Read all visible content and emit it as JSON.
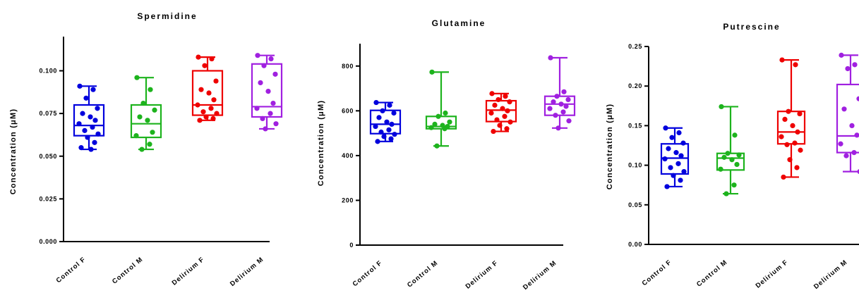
{
  "chart_data": [
    {
      "type": "box",
      "title": "Spermidine",
      "ylabel": "Concentration (μM)",
      "ylim": [
        0,
        0.12
      ],
      "yticks": [
        "0.000",
        "0.025",
        "0.050",
        "0.075",
        "0.100"
      ],
      "ytick_values": [
        0,
        0.025,
        0.05,
        0.075,
        0.1
      ],
      "categories": [
        "Control F",
        "Control M",
        "Delirium F",
        "Delirium M"
      ],
      "colors": [
        "#0000dd",
        "#1db31d",
        "#ee0000",
        "#a020e0"
      ],
      "series": [
        {
          "box": {
            "min": 0.054,
            "q1": 0.062,
            "median": 0.068,
            "q3": 0.08,
            "max": 0.091
          },
          "points": [
            0.091,
            0.089,
            0.084,
            0.078,
            0.075,
            0.073,
            0.071,
            0.069,
            0.067,
            0.065,
            0.063,
            0.061,
            0.058,
            0.055,
            0.054
          ]
        },
        {
          "box": {
            "min": 0.054,
            "q1": 0.061,
            "median": 0.069,
            "q3": 0.08,
            "max": 0.096
          },
          "points": [
            0.096,
            0.089,
            0.081,
            0.077,
            0.073,
            0.071,
            0.064,
            0.062,
            0.057,
            0.054
          ]
        },
        {
          "box": {
            "min": 0.071,
            "q1": 0.074,
            "median": 0.08,
            "q3": 0.1,
            "max": 0.108
          },
          "points": [
            0.108,
            0.107,
            0.103,
            0.094,
            0.089,
            0.087,
            0.083,
            0.08,
            0.078,
            0.076,
            0.075,
            0.073,
            0.072,
            0.071
          ]
        },
        {
          "box": {
            "min": 0.066,
            "q1": 0.073,
            "median": 0.079,
            "q3": 0.104,
            "max": 0.109
          },
          "points": [
            0.109,
            0.107,
            0.103,
            0.098,
            0.093,
            0.088,
            0.081,
            0.078,
            0.075,
            0.072,
            0.069,
            0.066
          ]
        }
      ]
    },
    {
      "type": "box",
      "title": "Glutamine",
      "ylabel": "Concentration (μM)",
      "ylim": [
        0,
        900
      ],
      "yticks": [
        "0",
        "200",
        "400",
        "600",
        "800"
      ],
      "ytick_values": [
        0,
        200,
        400,
        600,
        800
      ],
      "categories": [
        "Control F",
        "Control M",
        "Delirium F",
        "Delirium M"
      ],
      "colors": [
        "#0000dd",
        "#1db31d",
        "#ee0000",
        "#a020e0"
      ],
      "series": [
        {
          "box": {
            "min": 463,
            "q1": 498,
            "median": 540,
            "q3": 602,
            "max": 637
          },
          "points": [
            637,
            625,
            600,
            590,
            570,
            550,
            540,
            530,
            515,
            505,
            495,
            485,
            475,
            463
          ]
        },
        {
          "box": {
            "min": 443,
            "q1": 520,
            "median": 530,
            "q3": 575,
            "max": 773
          },
          "points": [
            773,
            590,
            575,
            550,
            540,
            535,
            530,
            525,
            520,
            443
          ]
        },
        {
          "box": {
            "min": 508,
            "q1": 552,
            "median": 603,
            "q3": 645,
            "max": 677
          },
          "points": [
            677,
            665,
            650,
            640,
            625,
            610,
            600,
            590,
            575,
            560,
            550,
            535,
            520,
            508
          ]
        },
        {
          "box": {
            "min": 523,
            "q1": 580,
            "median": 630,
            "q3": 665,
            "max": 837
          },
          "points": [
            837,
            685,
            665,
            650,
            640,
            630,
            620,
            610,
            595,
            580,
            555,
            523
          ]
        }
      ]
    },
    {
      "type": "box",
      "title": "Putrescine",
      "ylabel": "Concentration (μM)",
      "ylim": [
        0,
        0.25
      ],
      "yticks": [
        "0.00",
        "0.05",
        "0.10",
        "0.15",
        "0.20",
        "0.25"
      ],
      "ytick_values": [
        0,
        0.05,
        0.1,
        0.15,
        0.2,
        0.25
      ],
      "categories": [
        "Control F",
        "Control M",
        "Delirium F",
        "Delirium M"
      ],
      "colors": [
        "#0000dd",
        "#1db31d",
        "#ee0000",
        "#a020e0"
      ],
      "series": [
        {
          "box": {
            "min": 0.073,
            "q1": 0.089,
            "median": 0.109,
            "q3": 0.127,
            "max": 0.147
          },
          "points": [
            0.147,
            0.141,
            0.135,
            0.128,
            0.121,
            0.116,
            0.112,
            0.108,
            0.102,
            0.097,
            0.092,
            0.087,
            0.081,
            0.073
          ]
        },
        {
          "box": {
            "min": 0.064,
            "q1": 0.094,
            "median": 0.109,
            "q3": 0.115,
            "max": 0.174
          },
          "points": [
            0.174,
            0.138,
            0.115,
            0.113,
            0.11,
            0.107,
            0.101,
            0.095,
            0.075,
            0.064
          ]
        },
        {
          "box": {
            "min": 0.085,
            "q1": 0.127,
            "median": 0.142,
            "q3": 0.168,
            "max": 0.233
          },
          "points": [
            0.233,
            0.227,
            0.168,
            0.165,
            0.158,
            0.15,
            0.142,
            0.136,
            0.128,
            0.126,
            0.119,
            0.107,
            0.097,
            0.085
          ]
        },
        {
          "box": {
            "min": 0.092,
            "q1": 0.116,
            "median": 0.137,
            "q3": 0.202,
            "max": 0.239
          },
          "points": [
            0.239,
            0.227,
            0.222,
            0.184,
            0.171,
            0.15,
            0.138,
            0.127,
            0.116,
            0.112,
            0.092
          ]
        }
      ]
    }
  ]
}
